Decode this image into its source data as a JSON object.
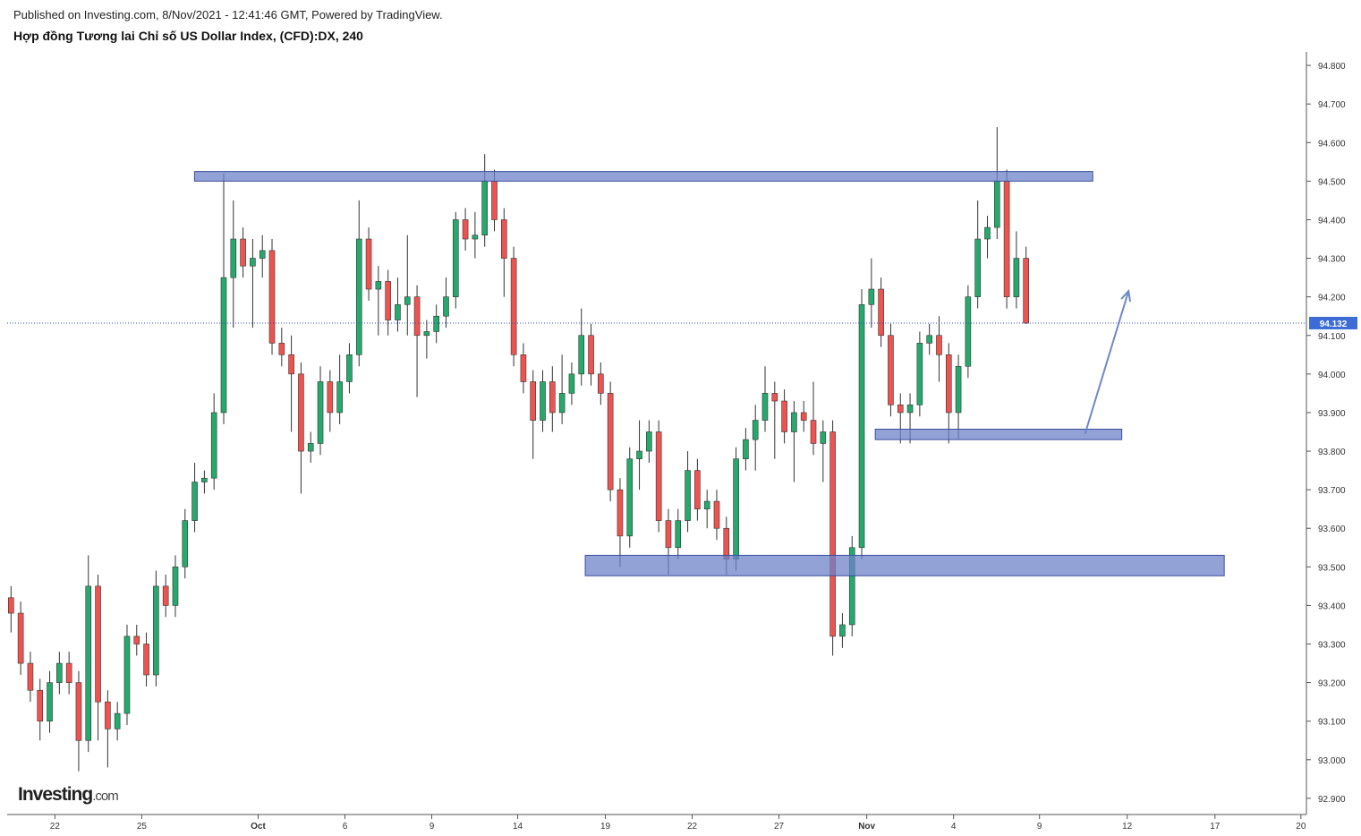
{
  "header": {
    "published": "Published on Investing.com, 8/Nov/2021 - 12:41:46 GMT, Powered by TradingView.",
    "title": "Hợp đồng Tương lai Chỉ số US Dollar Index, (CFD):DX, 240"
  },
  "logo": {
    "name": "Investing",
    "suffix": ".com"
  },
  "chart_data": {
    "type": "candlestick",
    "up_color": "#26a96c",
    "down_color": "#ef5350",
    "open": [
      93.42,
      93.38,
      93.25,
      93.18,
      93.1,
      93.2,
      93.25,
      93.2,
      93.05,
      93.45,
      93.15,
      93.08,
      93.12,
      93.32,
      93.3,
      93.22,
      93.45,
      93.4,
      93.5,
      93.62,
      93.72,
      93.73,
      93.9,
      94.25,
      94.35,
      94.28,
      94.3,
      94.32,
      94.08,
      94.05,
      94.0,
      93.8,
      93.82,
      93.98,
      93.9,
      93.98,
      94.05,
      94.35,
      94.22,
      94.24,
      94.14,
      94.18,
      94.2,
      94.1,
      94.11,
      94.15,
      94.2,
      94.4,
      94.35,
      94.36,
      94.5,
      94.4,
      94.3,
      94.05,
      93.98,
      93.88,
      93.98,
      93.9,
      93.95,
      94.0,
      94.1,
      94.0,
      93.95,
      93.7,
      93.58,
      93.78,
      93.8,
      93.85,
      93.62,
      93.55,
      93.62,
      93.75,
      93.65,
      93.67,
      93.6,
      93.52,
      93.78,
      93.83,
      93.88,
      93.95,
      93.93,
      93.85,
      93.9,
      93.88,
      93.82,
      93.85,
      93.32,
      93.35,
      93.55,
      94.18,
      94.22,
      94.1,
      93.92,
      93.9,
      93.92,
      94.08,
      94.1,
      94.05,
      93.9,
      94.02,
      94.2,
      94.35,
      94.38,
      94.5,
      94.2,
      94.3
    ],
    "high": [
      93.45,
      93.41,
      93.28,
      93.21,
      93.23,
      93.28,
      93.28,
      93.23,
      93.53,
      93.48,
      93.18,
      93.15,
      93.35,
      93.35,
      93.33,
      93.49,
      93.48,
      93.53,
      93.65,
      93.77,
      93.75,
      93.95,
      94.52,
      94.45,
      94.38,
      94.35,
      94.36,
      94.35,
      94.12,
      94.1,
      94.03,
      93.85,
      94.02,
      94.01,
      94.05,
      94.08,
      94.45,
      94.38,
      94.28,
      94.27,
      94.25,
      94.36,
      94.23,
      94.14,
      94.18,
      94.25,
      94.42,
      94.43,
      94.42,
      94.57,
      94.53,
      94.43,
      94.33,
      94.08,
      94.01,
      94.01,
      94.02,
      94.05,
      94.03,
      94.17,
      94.13,
      94.03,
      93.98,
      93.73,
      93.81,
      93.88,
      93.88,
      93.88,
      93.65,
      93.65,
      93.8,
      93.78,
      93.7,
      93.7,
      93.63,
      93.81,
      93.86,
      93.92,
      94.02,
      93.98,
      93.96,
      93.93,
      93.93,
      93.98,
      93.88,
      93.88,
      93.38,
      93.58,
      94.22,
      94.3,
      94.25,
      94.13,
      93.95,
      93.95,
      94.11,
      94.13,
      94.15,
      94.08,
      94.05,
      94.23,
      94.45,
      94.41,
      94.64,
      94.53,
      94.37,
      94.33
    ],
    "low": [
      93.33,
      93.22,
      93.15,
      93.05,
      93.07,
      93.17,
      93.17,
      92.97,
      93.02,
      93.05,
      92.98,
      93.05,
      93.09,
      93.27,
      93.19,
      93.19,
      93.37,
      93.37,
      93.47,
      93.59,
      93.69,
      93.7,
      93.87,
      94.12,
      94.25,
      94.12,
      94.25,
      94.05,
      94.02,
      93.85,
      93.69,
      93.77,
      93.79,
      93.85,
      93.87,
      93.95,
      94.02,
      94.19,
      94.1,
      94.1,
      94.11,
      94.1,
      93.94,
      94.04,
      94.08,
      94.12,
      94.17,
      94.32,
      94.3,
      94.33,
      94.37,
      94.2,
      94.02,
      93.95,
      93.78,
      93.85,
      93.85,
      93.87,
      93.92,
      93.97,
      93.97,
      93.92,
      93.67,
      93.5,
      93.55,
      93.7,
      93.77,
      93.59,
      93.48,
      93.52,
      93.59,
      93.62,
      93.6,
      93.57,
      93.48,
      93.49,
      93.75,
      93.75,
      93.85,
      93.78,
      93.82,
      93.72,
      93.85,
      93.79,
      93.72,
      93.27,
      93.29,
      93.32,
      93.52,
      94.12,
      94.07,
      93.89,
      93.82,
      93.82,
      93.89,
      94.05,
      93.98,
      93.82,
      93.83,
      93.99,
      94.17,
      94.3,
      94.35,
      94.17,
      94.17,
      94.13
    ],
    "close": [
      93.38,
      93.25,
      93.18,
      93.1,
      93.2,
      93.25,
      93.2,
      93.05,
      93.45,
      93.15,
      93.08,
      93.12,
      93.32,
      93.3,
      93.22,
      93.45,
      93.4,
      93.5,
      93.62,
      93.72,
      93.73,
      93.9,
      94.25,
      94.35,
      94.28,
      94.3,
      94.32,
      94.08,
      94.05,
      94.0,
      93.8,
      93.82,
      93.98,
      93.9,
      93.98,
      94.05,
      94.35,
      94.22,
      94.24,
      94.14,
      94.18,
      94.2,
      94.1,
      94.11,
      94.15,
      94.2,
      94.4,
      94.35,
      94.36,
      94.5,
      94.4,
      94.3,
      94.05,
      93.98,
      93.88,
      93.98,
      93.9,
      93.95,
      94.0,
      94.1,
      94.0,
      93.95,
      93.7,
      93.58,
      93.78,
      93.8,
      93.85,
      93.62,
      93.55,
      93.62,
      93.75,
      93.65,
      93.67,
      93.6,
      93.52,
      93.78,
      93.83,
      93.88,
      93.95,
      93.93,
      93.85,
      93.9,
      93.88,
      93.82,
      93.85,
      93.32,
      93.35,
      93.55,
      94.18,
      94.22,
      94.1,
      93.92,
      93.9,
      93.92,
      94.08,
      94.1,
      94.05,
      93.9,
      94.02,
      94.2,
      94.35,
      94.38,
      94.5,
      94.2,
      94.3,
      94.132
    ],
    "last_price": {
      "value": 94.132,
      "label": "94.132"
    },
    "xlim": [
      -0.4,
      134
    ],
    "xticks": [
      {
        "value": 4.54,
        "label": "22"
      },
      {
        "value": 13.52,
        "label": "25"
      },
      {
        "value": 25.56,
        "label": "Oct"
      },
      {
        "value": 34.54,
        "label": "6"
      },
      {
        "value": 43.52,
        "label": "9"
      },
      {
        "value": 52.41,
        "label": "14"
      },
      {
        "value": 61.48,
        "label": "19"
      },
      {
        "value": 70.46,
        "label": "22"
      },
      {
        "value": 79.44,
        "label": "27"
      },
      {
        "value": 88.52,
        "label": "Nov"
      },
      {
        "value": 97.5,
        "label": "4"
      },
      {
        "value": 106.39,
        "label": "9"
      },
      {
        "value": 115.46,
        "label": "12"
      },
      {
        "value": 124.54,
        "label": "17"
      },
      {
        "value": 133.43,
        "label": "20"
      }
    ],
    "ylim": [
      92.858,
      94.9
    ],
    "yticks": [
      {
        "value": 92.9,
        "label": "92.900"
      },
      {
        "value": 93.0,
        "label": "93.000"
      },
      {
        "value": 93.1,
        "label": "93.100"
      },
      {
        "value": 93.2,
        "label": "93.200"
      },
      {
        "value": 93.3,
        "label": "93.300"
      },
      {
        "value": 93.4,
        "label": "93.400"
      },
      {
        "value": 93.5,
        "label": "93.500"
      },
      {
        "value": 93.6,
        "label": "93.600"
      },
      {
        "value": 93.7,
        "label": "93.700"
      },
      {
        "value": 93.8,
        "label": "93.800"
      },
      {
        "value": 93.9,
        "label": "93.900"
      },
      {
        "value": 94.0,
        "label": "94.000"
      },
      {
        "value": 94.1,
        "label": "94.100"
      },
      {
        "value": 94.2,
        "label": "94.200"
      },
      {
        "value": 94.3,
        "label": "94.300"
      },
      {
        "value": 94.4,
        "label": "94.400"
      },
      {
        "value": 94.5,
        "label": "94.500"
      },
      {
        "value": 94.6,
        "label": "94.600"
      },
      {
        "value": 94.7,
        "label": "94.700"
      },
      {
        "value": 94.8,
        "label": "94.800"
      }
    ],
    "zones": [
      {
        "x": [
          18.98,
          111.9
        ],
        "y": [
          94.5,
          94.525
        ]
      },
      {
        "x": [
          89.4,
          114.9
        ],
        "y": [
          93.83,
          93.857
        ]
      },
      {
        "x": [
          59.4,
          125.5
        ],
        "y": [
          93.477,
          93.53
        ]
      }
    ],
    "arrow": {
      "x": [
        111.1,
        115.6
      ],
      "y": [
        93.845,
        94.215
      ]
    }
  }
}
